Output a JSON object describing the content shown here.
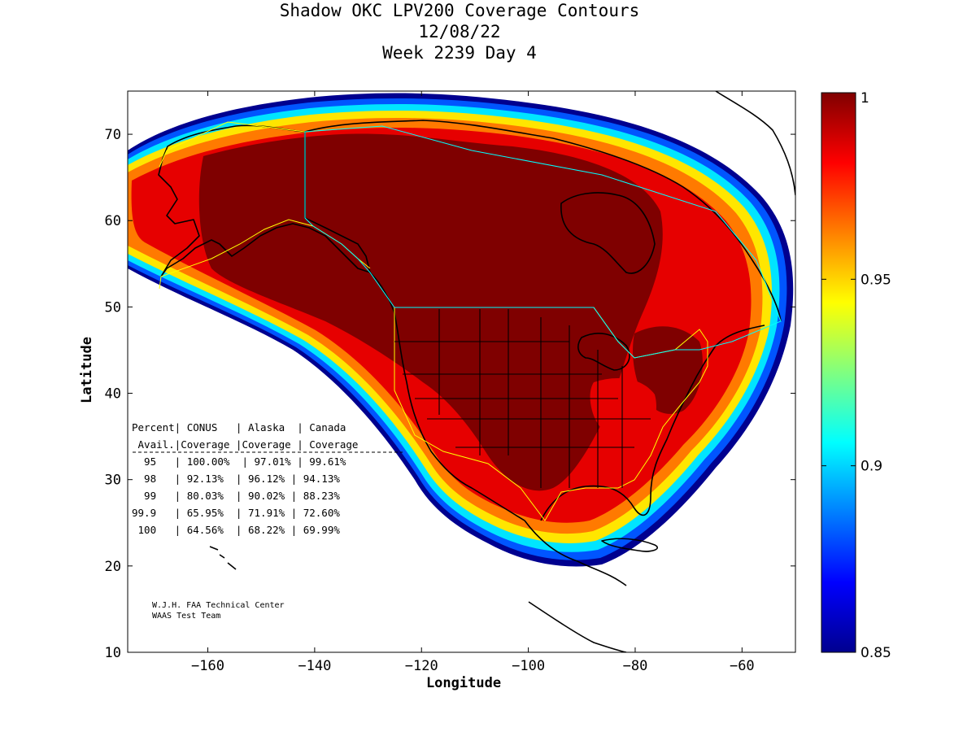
{
  "title": {
    "line1": "Shadow OKC LPV200 Coverage Contours",
    "line2": "12/08/22",
    "line3": "Week 2239 Day 4"
  },
  "axes": {
    "xlabel": "Longitude",
    "ylabel": "Latitude",
    "xlim": [
      -175,
      -50
    ],
    "ylim": [
      10,
      75
    ],
    "xticks": [
      -160,
      -140,
      -120,
      -100,
      -80,
      -60
    ],
    "yticks": [
      10,
      20,
      30,
      40,
      50,
      60,
      70
    ]
  },
  "colorbar": {
    "min": 0.85,
    "max": 1,
    "ticks": [
      0.85,
      0.9,
      0.95,
      1
    ],
    "tick_labels": [
      "0.85",
      "0.9",
      "0.95",
      "1"
    ],
    "colormap": "jet"
  },
  "table": {
    "header1": "Percent| CONUS   | Alaska  | Canada",
    "header2": " Avail.|Coverage |Coverage | Coverage",
    "rows": [
      "  95   | 100.00%  | 97.01% | 99.61%",
      "  98   | 92.13%  | 96.12% | 94.13%",
      "  99   | 80.03%  | 90.02% | 88.23%",
      "99.9   | 65.95%  | 71.91% | 72.60%",
      " 100   | 64.56%  | 68.22% | 69.99%"
    ]
  },
  "credits": {
    "line1": "W.J.H. FAA Technical Center",
    "line2": "WAAS Test Team"
  },
  "colors": {
    "deep_red": "#7f0000",
    "red": "#e60000",
    "orange": "#ff8000",
    "yellow": "#ffff00",
    "cyan": "#00ffff",
    "blue": "#0000ff",
    "dark_blue": "#00008f",
    "boundary_yellow": "#ffff00",
    "boundary_cyan": "#00ffff"
  },
  "chart_data": {
    "type": "heatmap",
    "title": "Shadow OKC LPV200 Coverage Contours",
    "xlabel": "Longitude",
    "ylabel": "Latitude",
    "xlim": [
      -175,
      -50
    ],
    "ylim": [
      10,
      75
    ],
    "value_range": [
      0.85,
      1
    ],
    "coverage_table": {
      "columns": [
        "Percent Avail.",
        "CONUS Coverage",
        "Alaska Coverage",
        "Canada Coverage"
      ],
      "rows": [
        [
          "95",
          "100.00%",
          "97.01%",
          "99.61%"
        ],
        [
          "98",
          "92.13%",
          "96.12%",
          "94.13%"
        ],
        [
          "99",
          "80.03%",
          "90.02%",
          "88.23%"
        ],
        [
          "99.9",
          "65.95%",
          "71.91%",
          "72.60%"
        ],
        [
          "100",
          "64.56%",
          "68.22%",
          "69.99%"
        ]
      ]
    }
  }
}
